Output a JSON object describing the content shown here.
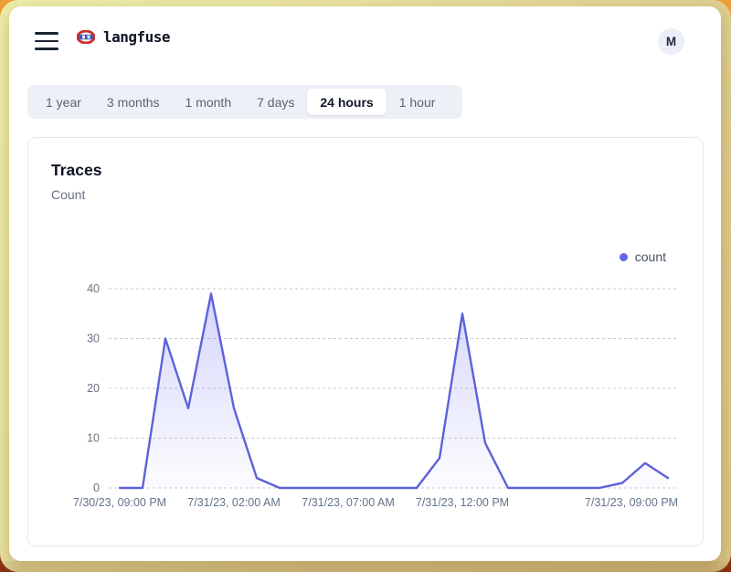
{
  "header": {
    "brand": "langfuse",
    "avatar_initial": "M"
  },
  "time_range_tabs": {
    "items": [
      {
        "label": "1 year",
        "active": false
      },
      {
        "label": "3 months",
        "active": false
      },
      {
        "label": "1 month",
        "active": false
      },
      {
        "label": "7 days",
        "active": false
      },
      {
        "label": "24 hours",
        "active": true
      },
      {
        "label": "1 hour",
        "active": false
      }
    ]
  },
  "card": {
    "title": "Traces",
    "subtitle": "Count"
  },
  "legend": {
    "label": "count",
    "color": "#6266e4"
  },
  "chart_data": {
    "type": "area",
    "title": "Traces",
    "ylabel": "Count",
    "xlabel": "",
    "x": [
      "7/30/23, 09:00 PM",
      "7/30/23, 10:00 PM",
      "7/30/23, 11:00 PM",
      "7/31/23, 12:00 AM",
      "7/31/23, 01:00 AM",
      "7/31/23, 02:00 AM",
      "7/31/23, 03:00 AM",
      "7/31/23, 04:00 AM",
      "7/31/23, 05:00 AM",
      "7/31/23, 06:00 AM",
      "7/31/23, 07:00 AM",
      "7/31/23, 08:00 AM",
      "7/31/23, 09:00 AM",
      "7/31/23, 10:00 AM",
      "7/31/23, 11:00 AM",
      "7/31/23, 12:00 PM",
      "7/31/23, 01:00 PM",
      "7/31/23, 02:00 PM",
      "7/31/23, 03:00 PM",
      "7/31/23, 04:00 PM",
      "7/31/23, 05:00 PM",
      "7/31/23, 06:00 PM",
      "7/31/23, 07:00 PM",
      "7/31/23, 08:00 PM",
      "7/31/23, 09:00 PM"
    ],
    "series": [
      {
        "name": "count",
        "values": [
          0,
          0,
          30,
          16,
          39,
          16,
          2,
          0,
          0,
          0,
          0,
          0,
          0,
          0,
          6,
          35,
          9,
          0,
          0,
          0,
          0,
          0,
          1,
          5,
          2
        ]
      }
    ],
    "x_tick_indices": [
      0,
      5,
      10,
      15,
      24
    ],
    "x_tick_labels": [
      "7/30/23, 09:00 PM",
      "7/31/23, 02:00 AM",
      "7/31/23, 07:00 AM",
      "7/31/23, 12:00 PM",
      "7/31/23, 09:00 PM"
    ],
    "y_ticks": [
      0,
      10,
      20,
      30,
      40
    ],
    "ylim": [
      0,
      40
    ],
    "grid": "horizontal-dashed",
    "legend_position": "top-right",
    "line_color": "#5d62d8",
    "area_color": "#6366f1",
    "tick_color": "#6b7280"
  }
}
